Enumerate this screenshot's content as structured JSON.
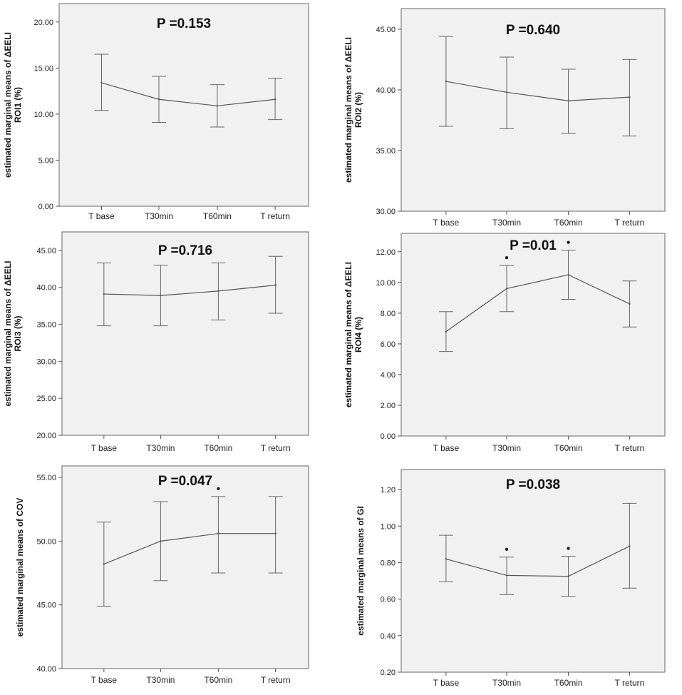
{
  "chart_data": [
    {
      "type": "line",
      "title": "P =0.153",
      "ylabel_lines": [
        "estimated marginal means of ΔEELI",
        "ROI1 (%)"
      ],
      "categories": [
        "T base",
        "T30min",
        "T60min",
        "T return"
      ],
      "values": [
        13.4,
        11.6,
        10.9,
        11.6
      ],
      "error_upper": [
        16.5,
        14.1,
        13.2,
        13.9
      ],
      "error_lower": [
        10.4,
        9.1,
        8.6,
        9.4
      ],
      "ylim": [
        0,
        22
      ],
      "yticks": [
        0,
        5,
        10,
        15,
        20
      ],
      "ytick_labels": [
        "0.00",
        "5.00",
        "10.00",
        "15.00",
        "20.00"
      ],
      "significance_markers": [],
      "grid": false
    },
    {
      "type": "line",
      "title": "P =0.640",
      "ylabel_lines": [
        "estimated marginal means of ΔEELI",
        "ROI2 (%)"
      ],
      "categories": [
        "T base",
        "T30min",
        "T60min",
        "T return"
      ],
      "values": [
        40.7,
        39.8,
        39.1,
        39.4
      ],
      "error_upper": [
        44.4,
        42.7,
        41.7,
        42.5
      ],
      "error_lower": [
        37.0,
        36.8,
        36.4,
        36.2
      ],
      "ylim": [
        30,
        46.7
      ],
      "yticks": [
        30,
        35,
        40,
        45
      ],
      "ytick_labels": [
        "30.00",
        "35.00",
        "40.00",
        "45.00"
      ],
      "significance_markers": [],
      "grid": false
    },
    {
      "type": "line",
      "title": "P =0.716",
      "ylabel_lines": [
        "estimated marginal means of ΔEELI",
        "ROI3 (%)"
      ],
      "categories": [
        "T base",
        "T30min",
        "T60min",
        "T return"
      ],
      "values": [
        39.1,
        38.9,
        39.5,
        40.3
      ],
      "error_upper": [
        43.3,
        43.0,
        43.3,
        44.2
      ],
      "error_lower": [
        34.8,
        34.8,
        35.6,
        36.5
      ],
      "ylim": [
        20,
        47.5
      ],
      "yticks": [
        20,
        25,
        30,
        35,
        40,
        45
      ],
      "ytick_labels": [
        "20.00",
        "25.00",
        "30.00",
        "35.00",
        "40.00",
        "45.00"
      ],
      "significance_markers": [],
      "grid": false
    },
    {
      "type": "line",
      "title": "P =0.01",
      "ylabel_lines": [
        "estimated marginal means of ΔEELI",
        "ROI4 (%)"
      ],
      "categories": [
        "T base",
        "T30min",
        "T60min",
        "T return"
      ],
      "values": [
        6.8,
        9.6,
        10.5,
        8.6
      ],
      "error_upper": [
        8.1,
        11.1,
        12.1,
        10.1
      ],
      "error_lower": [
        5.5,
        8.1,
        8.9,
        7.1
      ],
      "ylim": [
        0,
        13.2
      ],
      "yticks": [
        0,
        2,
        4,
        6,
        8,
        10,
        12
      ],
      "ytick_labels": [
        "0.00",
        "2.00",
        "4.00",
        "6.00",
        "8.00",
        "10.00",
        "12.00"
      ],
      "significance_markers": [
        "",
        "*",
        "*",
        ""
      ],
      "grid": false
    },
    {
      "type": "line",
      "title": "P =0.047",
      "ylabel_lines": [
        "estimated marginal means of COV"
      ],
      "categories": [
        "T base",
        "T30min",
        "T60min",
        "T return"
      ],
      "values": [
        48.2,
        50.0,
        50.6,
        50.6
      ],
      "error_upper": [
        51.5,
        53.1,
        53.5,
        53.5
      ],
      "error_lower": [
        44.9,
        46.9,
        47.5,
        47.5
      ],
      "ylim": [
        40,
        55.9
      ],
      "yticks": [
        40,
        45,
        50,
        55
      ],
      "ytick_labels": [
        "40.00",
        "45.00",
        "50.00",
        "55.00"
      ],
      "significance_markers": [
        "",
        "",
        "*",
        ""
      ],
      "grid": false
    },
    {
      "type": "line",
      "title": "P =0.038",
      "ylabel_lines": [
        "estimated marginal means of GI"
      ],
      "categories": [
        "T base",
        "T30min",
        "T60min",
        "T return"
      ],
      "values": [
        0.82,
        0.73,
        0.725,
        0.89
      ],
      "error_upper": [
        0.95,
        0.83,
        0.835,
        1.125
      ],
      "error_lower": [
        0.695,
        0.625,
        0.615,
        0.66
      ],
      "ylim": [
        0.2,
        1.31
      ],
      "yticks": [
        0.2,
        0.4,
        0.6,
        0.8,
        1.0,
        1.2
      ],
      "ytick_labels": [
        "0.20",
        "0.40",
        "0.60",
        "0.80",
        "1.00",
        "1.20"
      ],
      "significance_markers": [
        "",
        "*",
        "*",
        ""
      ],
      "grid": false
    }
  ]
}
